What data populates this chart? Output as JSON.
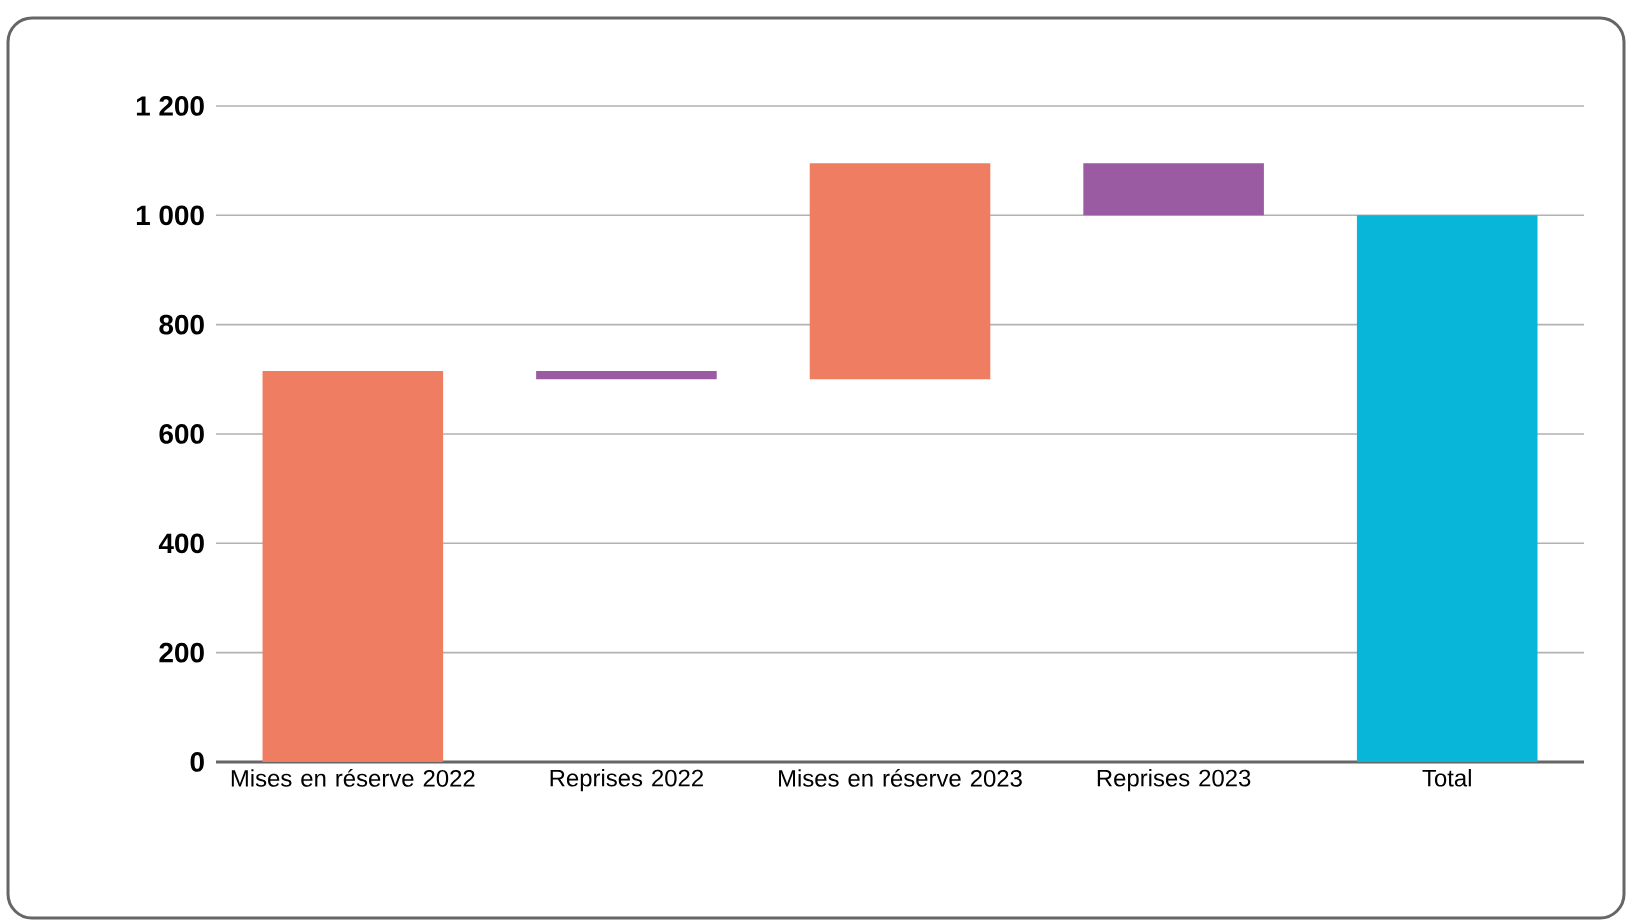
{
  "chart_data": {
    "type": "bar",
    "categories": [
      "Mises en réserve 2022",
      "Reprises 2022",
      "Mises en réserve 2023",
      "Reprises 2023",
      "Total"
    ],
    "values": [
      715,
      -15,
      395,
      -95,
      1000
    ],
    "base": [
      0,
      715,
      700,
      1095,
      0
    ],
    "colors": [
      "#ef7d61",
      "#9a5ba3",
      "#ef7d61",
      "#9a5ba3",
      "#08b6d9"
    ],
    "ylim": [
      0,
      1200
    ],
    "yticks": [
      0,
      {
        "value": 200,
        "label": "200"
      },
      {
        "value": 400,
        "label": "400"
      },
      {
        "value": 600,
        "label": "600"
      },
      {
        "value": 800,
        "label": "800"
      },
      {
        "value": 1000,
        "label": "1 000"
      },
      {
        "value": 1200,
        "label": "1 200"
      }
    ],
    "grid": "y"
  }
}
